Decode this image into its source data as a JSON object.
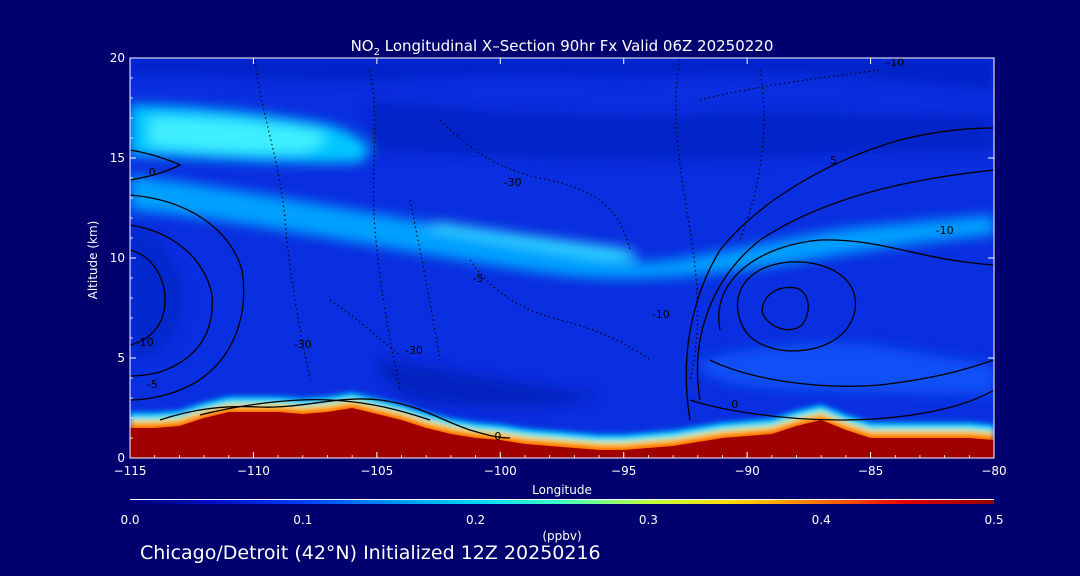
{
  "chart_data": {
    "type": "heatmap",
    "title_prefix": "NO",
    "title_sub": "2",
    "title_rest": " Longitudinal X–Section 90hr  Fx Valid 06Z 20250220",
    "xlabel": "Longitude",
    "ylabel": "Altitude (km)",
    "xlim": [
      -115,
      -80
    ],
    "ylim": [
      0,
      20
    ],
    "x_ticks": [
      -115,
      -110,
      -105,
      -100,
      -95,
      -90,
      -85,
      -80
    ],
    "x_tick_labels": [
      "−115",
      "−110",
      "−105",
      "−100",
      "−95",
      "−90",
      "−85",
      "−80"
    ],
    "y_ticks": [
      0,
      5,
      10,
      15,
      20
    ],
    "y_tick_labels": [
      "0",
      "5",
      "10",
      "15",
      "20"
    ],
    "colorbar": {
      "label": "(ppbv)",
      "range": [
        0.0,
        0.5
      ],
      "ticks": [
        0.0,
        0.1,
        0.2,
        0.3,
        0.4,
        0.5
      ],
      "tick_labels": [
        "0.0",
        "0.1",
        "0.2",
        "0.3",
        "0.4",
        "0.5"
      ],
      "colors": [
        "#000078",
        "#0010c8",
        "#0040ff",
        "#0090ff",
        "#00d8ff",
        "#40ffc0",
        "#c0ff40",
        "#ffd800",
        "#ff7000",
        "#e00000",
        "#900000"
      ]
    },
    "terrain_profile": {
      "lon": [
        -115,
        -114,
        -113,
        -112,
        -111,
        -110,
        -109,
        -108,
        -107,
        -106,
        -105,
        -104,
        -103,
        -102,
        -101,
        -100,
        -99,
        -98,
        -97,
        -96,
        -95,
        -94,
        -93,
        -92,
        -91,
        -90,
        -89,
        -88,
        -87,
        -86,
        -85,
        -84,
        -83,
        -82,
        -81,
        -80
      ],
      "alt_km": [
        1.5,
        1.5,
        1.6,
        2.0,
        2.3,
        2.3,
        2.3,
        2.2,
        2.3,
        2.5,
        2.2,
        1.9,
        1.5,
        1.2,
        1.0,
        0.9,
        0.7,
        0.6,
        0.5,
        0.4,
        0.4,
        0.5,
        0.6,
        0.8,
        1.0,
        1.1,
        1.2,
        1.6,
        1.9,
        1.4,
        1.0,
        1.0,
        1.0,
        1.0,
        1.0,
        0.9
      ]
    },
    "contour_labels": [
      {
        "text": "0",
        "lon": -114.1,
        "alt": 14.1
      },
      {
        "text": "-10",
        "lon": -114.4,
        "alt": 5.6
      },
      {
        "text": "-5",
        "lon": -114.1,
        "alt": 3.5
      },
      {
        "text": "-30",
        "lon": -99.5,
        "alt": 13.6
      },
      {
        "text": "-5",
        "lon": -100.9,
        "alt": 8.8
      },
      {
        "text": "-30",
        "lon": -103.5,
        "alt": 5.2
      },
      {
        "text": "-30",
        "lon": -108.0,
        "alt": 5.5
      },
      {
        "text": "-10",
        "lon": -93.5,
        "alt": 7.0
      },
      {
        "text": "0",
        "lon": -90.5,
        "alt": 2.5
      },
      {
        "text": "0",
        "lon": -100.1,
        "alt": 0.9
      },
      {
        "text": "-10",
        "lon": -82.0,
        "alt": 11.2
      },
      {
        "text": "5",
        "lon": -86.5,
        "alt": 14.7
      },
      {
        "text": "-10",
        "lon": -84.0,
        "alt": 19.6
      }
    ]
  },
  "footer": "Chicago/Detroit (42°N) Initialized 12Z 20250216"
}
